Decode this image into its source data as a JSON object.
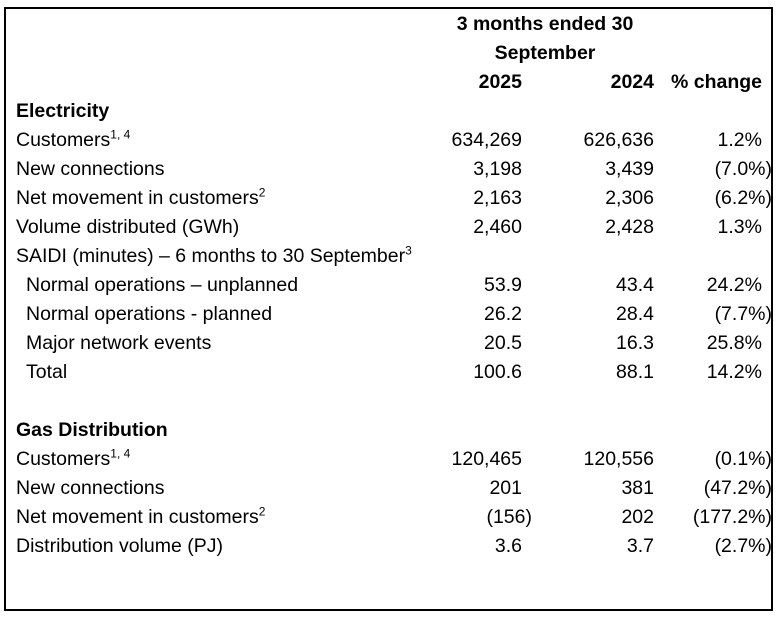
{
  "table": {
    "header": {
      "period_line1": "3 months ended 30",
      "period_line2": "September",
      "col_2025": "2025",
      "col_2024": "2024",
      "col_change": "% change"
    },
    "rows": [
      {
        "type": "section",
        "label": "Electricity"
      },
      {
        "label": "Customers",
        "sup": "1, 4",
        "y2025": "634,269",
        "y2024": "626,636",
        "change": "1.2%"
      },
      {
        "label": "New connections",
        "y2025": "3,198",
        "y2024": "3,439",
        "change": "(7.0%)"
      },
      {
        "label": "Net movement in customers",
        "sup": "2",
        "y2025": "2,163",
        "y2024": "2,306",
        "change": "(6.2%)"
      },
      {
        "label": "Volume distributed (GWh)",
        "y2025": "2,460",
        "y2024": "2,428",
        "change": "1.3%"
      },
      {
        "label": "SAIDI (minutes) – 6 months to 30 September",
        "sup": "3"
      },
      {
        "label": "Normal operations – unplanned",
        "indent": true,
        "y2025": "53.9",
        "y2024": "43.4",
        "change": "24.2%"
      },
      {
        "label": "Normal operations - planned",
        "indent": true,
        "y2025": "26.2",
        "y2024": "28.4",
        "change": "(7.7%)"
      },
      {
        "label": "Major network events",
        "indent": true,
        "y2025": "20.5",
        "y2024": "16.3",
        "change": "25.8%"
      },
      {
        "label": "Total",
        "indent": true,
        "y2025": "100.6",
        "y2024": "88.1",
        "change": "14.2%"
      },
      {
        "type": "spacer"
      },
      {
        "type": "section",
        "label": "Gas Distribution"
      },
      {
        "label": "Customers",
        "sup": "1, 4",
        "y2025": "120,465",
        "y2024": "120,556",
        "change": "(0.1%)"
      },
      {
        "label": "New connections",
        "y2025": "201",
        "y2024": "381",
        "change": "(47.2%)"
      },
      {
        "label": "Net movement in customers",
        "sup": "2",
        "y2025": "(156)",
        "y2024": "202",
        "change": "(177.2%)"
      },
      {
        "label": "Distribution volume (PJ)",
        "y2025": "3.6",
        "y2024": "3.7",
        "change": "(2.7%)"
      }
    ]
  }
}
